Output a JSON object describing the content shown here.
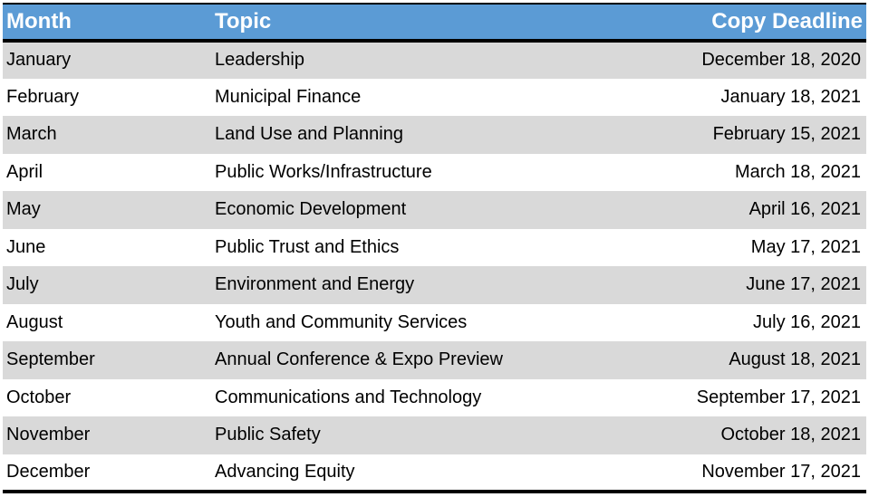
{
  "table": {
    "headers": {
      "month": "Month",
      "topic": "Topic",
      "deadline": "Copy Deadline"
    },
    "rows": [
      {
        "month": "January",
        "topic": "Leadership",
        "deadline": "December 18, 2020"
      },
      {
        "month": "February",
        "topic": "Municipal Finance",
        "deadline": "January 18, 2021"
      },
      {
        "month": "March",
        "topic": "Land Use and Planning",
        "deadline": "February 15, 2021"
      },
      {
        "month": "April",
        "topic": "Public Works/Infrastructure",
        "deadline": "March 18, 2021"
      },
      {
        "month": "May",
        "topic": "Economic Development",
        "deadline": "April 16, 2021"
      },
      {
        "month": "June",
        "topic": "Public Trust and Ethics",
        "deadline": "May 17, 2021"
      },
      {
        "month": "July",
        "topic": "Environment and Energy",
        "deadline": "June 17, 2021"
      },
      {
        "month": "August",
        "topic": "Youth and Community Services",
        "deadline": "July 16, 2021"
      },
      {
        "month": "September",
        "topic": "Annual Conference & Expo Preview",
        "deadline": "August 18, 2021"
      },
      {
        "month": "October",
        "topic": "Communications and Technology",
        "deadline": "September 17, 2021"
      },
      {
        "month": "November",
        "topic": "Public Safety",
        "deadline": "October 18, 2021"
      },
      {
        "month": "December",
        "topic": "Advancing Equity",
        "deadline": "November 17, 2021"
      }
    ]
  },
  "colors": {
    "header_bg": "#5b9bd5",
    "header_text": "#ffffff",
    "row_shaded": "#d9d9d9",
    "row_plain": "#ffffff"
  }
}
